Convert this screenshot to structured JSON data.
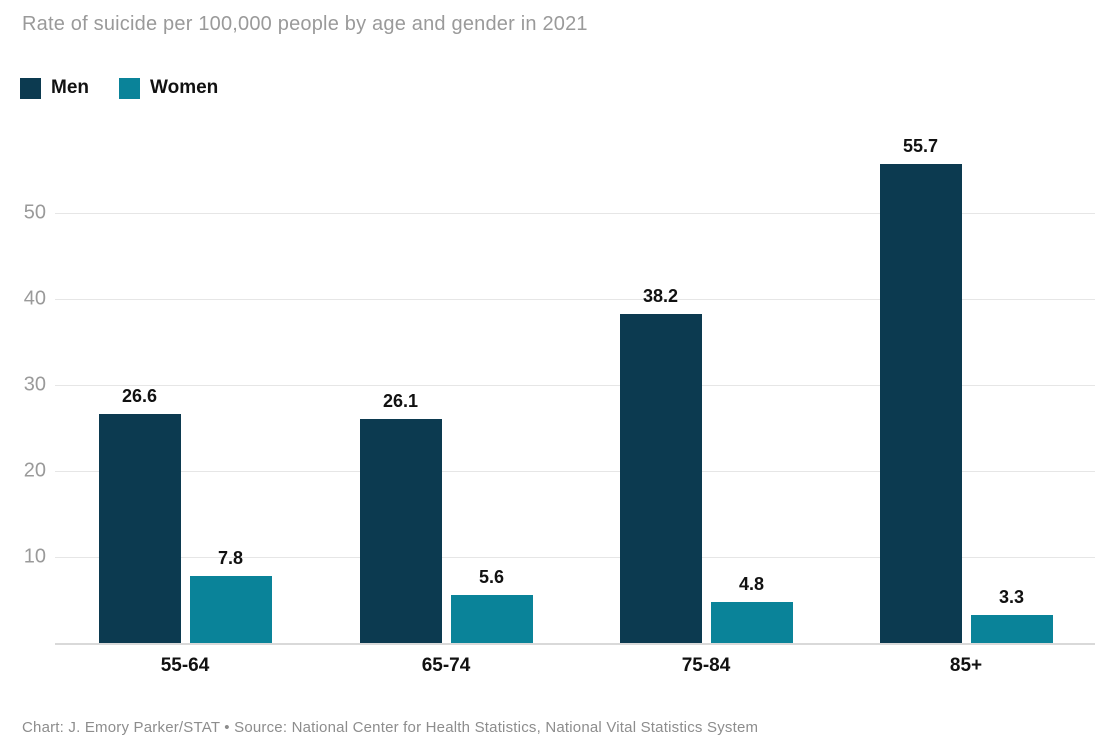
{
  "title": "Rate of suicide per 100,000 people by age and gender in 2021",
  "footer": "Chart: J. Emory Parker/STAT • Source: National Center for Health Statistics, National Vital Statistics System",
  "colors": {
    "men": "#0c3a50",
    "women": "#0a8399",
    "grid": "#e6e6e6",
    "axis": "#d9d9d9",
    "title_text": "#9a9a9a",
    "tick_text": "#9a9a9a",
    "footer_text": "#8d8d8d",
    "label_text": "#111111",
    "background": "#ffffff"
  },
  "chart_data": {
    "type": "bar",
    "title": "Rate of suicide per 100,000 people by age and gender in 2021",
    "categories": [
      "55-64",
      "65-74",
      "75-84",
      "85+"
    ],
    "series": [
      {
        "name": "Men",
        "color": "#0c3a50",
        "values": [
          26.6,
          26.1,
          38.2,
          55.7
        ]
      },
      {
        "name": "Women",
        "color": "#0a8399",
        "values": [
          7.8,
          5.6,
          4.8,
          3.3
        ]
      }
    ],
    "xlabel": "",
    "ylabel": "",
    "ylim": [
      0,
      57
    ],
    "yticks": [
      10,
      20,
      30,
      40,
      50
    ],
    "grid": "horizontal",
    "legend_position": "top-left",
    "value_labels": true,
    "source_note": "Chart: J. Emory Parker/STAT • Source: National Center for Health Statistics, National Vital Statistics System"
  }
}
